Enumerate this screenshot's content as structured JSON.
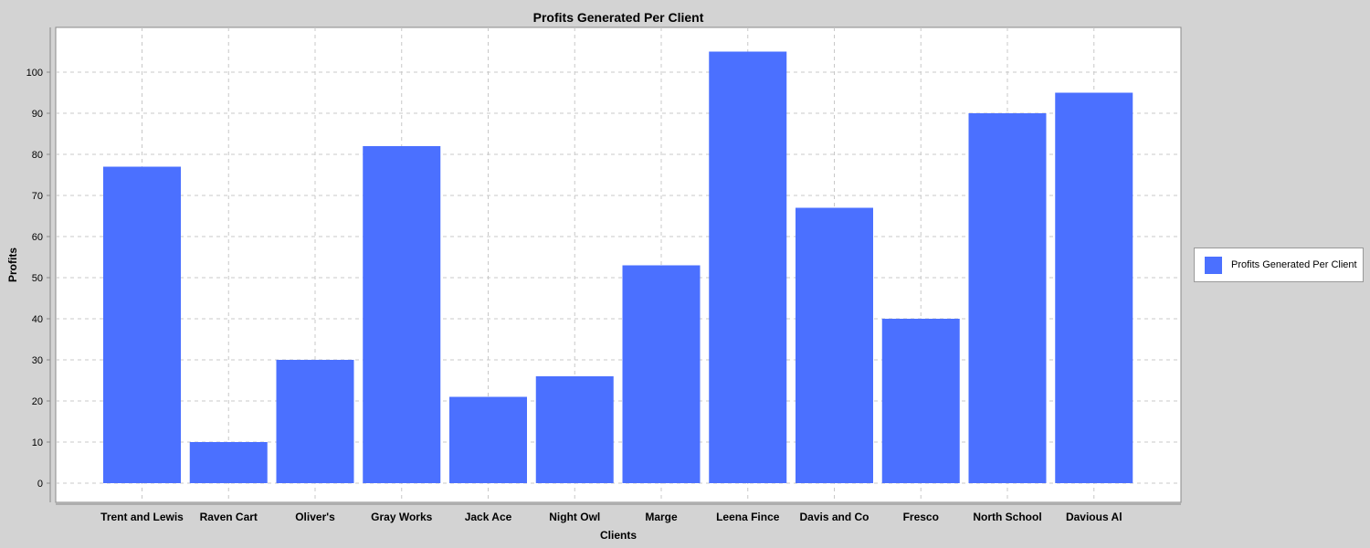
{
  "chart_data": {
    "type": "bar",
    "title": "Profits Generated Per Client",
    "xlabel": "Clients",
    "ylabel": "Profits",
    "categories": [
      "Trent and Lewis",
      "Raven Cart",
      "Oliver's",
      "Gray Works",
      "Jack Ace",
      "Night Owl",
      "Marge",
      "Leena Fince",
      "Davis and Co",
      "Fresco",
      "North School",
      "Davious Al"
    ],
    "series": [
      {
        "name": "Profits Generated Per Client",
        "values": [
          77,
          10,
          30,
          82,
          21,
          26,
          53,
          105,
          67,
          40,
          90,
          95
        ]
      }
    ],
    "ylim": [
      0,
      108
    ],
    "yticks": [
      0,
      10,
      20,
      30,
      40,
      50,
      60,
      70,
      80,
      90,
      100
    ],
    "grid": true,
    "legend": "right",
    "colors": {
      "bar": "#4b70ff",
      "background": "#d3d3d3",
      "plot": "#ffffff",
      "grid": "#c8c8c8"
    }
  }
}
